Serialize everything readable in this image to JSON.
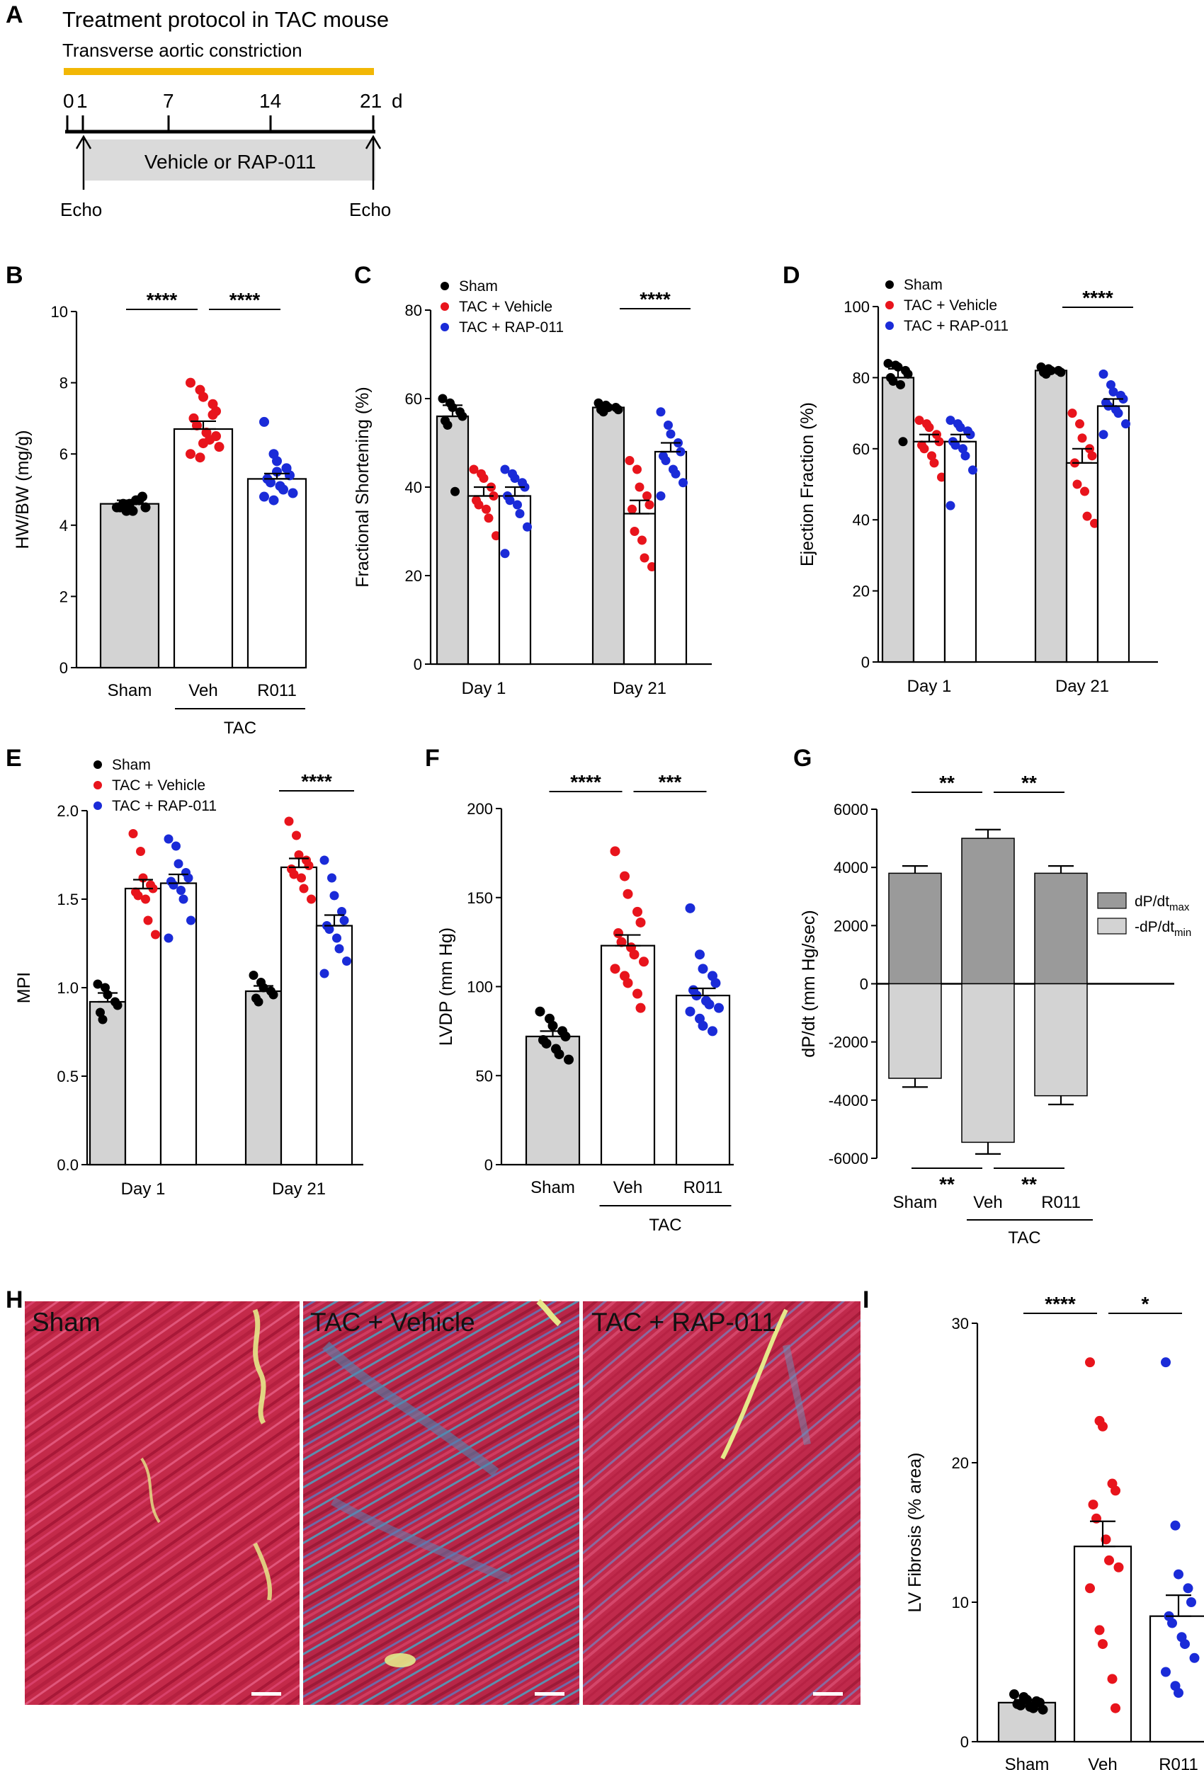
{
  "colors": {
    "sham": "#000000",
    "vehicle": "#e8141c",
    "rap": "#1a2bd8",
    "bar_gray": "#d3d3d3",
    "bar_dark": "#9a9a9a",
    "timeline": "#f2b705"
  },
  "legend": {
    "sham": "Sham",
    "vehicle": "TAC + Vehicle",
    "rap": "TAC + RAP-011"
  },
  "panelA": {
    "label": "A",
    "title": "Treatment protocol in TAC mouse",
    "subtitle": "Transverse aortic constriction",
    "ticks": [
      "0",
      "1",
      "7",
      "14",
      "21"
    ],
    "unit": "d",
    "box_label": "Vehicle or RAP-011",
    "echo_left": "Echo",
    "echo_right": "Echo"
  },
  "panelH": {
    "label": "H",
    "images": [
      "Sham",
      "TAC + Vehicle",
      "TAC + RAP-011"
    ]
  },
  "chart_data": [
    {
      "id": "B",
      "label": "B",
      "type": "bar",
      "ylabel": "HW/BW (mg/g)",
      "ylim": [
        0,
        10
      ],
      "yticks": [
        "0",
        "2",
        "4",
        "6",
        "8",
        "10"
      ],
      "categories": [
        "Sham",
        "Veh",
        "R011"
      ],
      "group_label": "TAC",
      "values": [
        4.6,
        6.7,
        5.3
      ],
      "errors": [
        0.1,
        0.22,
        0.15
      ],
      "points": [
        [
          4.5,
          4.4,
          4.6,
          4.7,
          4.8,
          4.5,
          4.6,
          4.4,
          4.7,
          4.5
        ],
        [
          8.0,
          7.8,
          7.6,
          7.4,
          7.2,
          7.0,
          6.8,
          6.6,
          6.4,
          6.2,
          6.0,
          5.9,
          6.3,
          7.1,
          6.5
        ],
        [
          6.9,
          6.0,
          5.8,
          5.6,
          5.4,
          5.3,
          5.2,
          5.1,
          5.0,
          4.9,
          4.8,
          4.7,
          5.5,
          5.6
        ]
      ],
      "significance": [
        "****",
        "****"
      ]
    },
    {
      "id": "C",
      "label": "C",
      "type": "bar",
      "ylabel": "Fractional Shortening (%)",
      "ylim": [
        0,
        80
      ],
      "yticks": [
        "0",
        "20",
        "40",
        "60",
        "80"
      ],
      "groups": [
        "Day 1",
        "Day 21"
      ],
      "series": [
        {
          "name": "Sham",
          "values": [
            56,
            58
          ],
          "errors": [
            2.5,
            0.4
          ],
          "points": [
            [
              60,
              59,
              58,
              57,
              56,
              55,
              54,
              39
            ],
            [
              59,
              58.5,
              58,
              58,
              57.5,
              57.5,
              57
            ]
          ]
        },
        {
          "name": "TAC + Vehicle",
          "values": [
            38,
            34
          ],
          "errors": [
            2,
            3
          ],
          "points": [
            [
              44,
              43,
              42,
              40,
              38,
              37,
              36,
              35,
              33,
              29
            ],
            [
              46,
              44,
              40,
              38,
              36,
              35,
              30,
              28,
              24,
              22
            ]
          ]
        },
        {
          "name": "TAC + RAP-011",
          "values": [
            38,
            48
          ],
          "errors": [
            2,
            2
          ],
          "points": [
            [
              44,
              43,
              42,
              41,
              40,
              38,
              37,
              36,
              34,
              31,
              25
            ],
            [
              57,
              54,
              52,
              50,
              48,
              47,
              46,
              44,
              43,
              41,
              38
            ]
          ]
        }
      ],
      "significance": [
        "****"
      ]
    },
    {
      "id": "D",
      "label": "D",
      "type": "bar",
      "ylabel": "Ejection Fraction (%)",
      "ylim": [
        0,
        100
      ],
      "yticks": [
        "0",
        "20",
        "40",
        "60",
        "80",
        "100"
      ],
      "groups": [
        "Day 1",
        "Day 21"
      ],
      "series": [
        {
          "name": "Sham",
          "values": [
            80,
            82
          ],
          "errors": [
            2.5,
            0.5
          ],
          "points": [
            [
              84,
              83.5,
              83,
              82,
              81,
              80,
              79,
              78,
              62
            ],
            [
              83,
              82.5,
              82,
              82,
              81.5,
              81.5,
              81
            ]
          ]
        },
        {
          "name": "TAC + Vehicle",
          "values": [
            62,
            56
          ],
          "errors": [
            2,
            4
          ],
          "points": [
            [
              68,
              67,
              66,
              64,
              62,
              61,
              60,
              58,
              56,
              52
            ],
            [
              70,
              67,
              63,
              60,
              58,
              56,
              50,
              48,
              41,
              39
            ]
          ]
        },
        {
          "name": "TAC + RAP-011",
          "values": [
            62,
            72
          ],
          "errors": [
            2,
            2
          ],
          "points": [
            [
              68,
              67,
              66,
              65,
              64,
              62,
              61,
              60,
              58,
              54,
              44
            ],
            [
              81,
              78,
              76,
              75,
              74,
              73,
              72,
              71,
              70,
              67,
              64
            ]
          ]
        }
      ],
      "significance": [
        "****"
      ]
    },
    {
      "id": "E",
      "label": "E",
      "type": "bar",
      "ylabel": "MPI",
      "ylim": [
        0,
        2.0
      ],
      "yticks": [
        "0.0",
        "0.5",
        "1.0",
        "1.5",
        "2.0"
      ],
      "groups": [
        "Day 1",
        "Day 21"
      ],
      "series": [
        {
          "name": "Sham",
          "values": [
            0.92,
            0.98
          ],
          "errors": [
            0.05,
            0.03
          ],
          "points": [
            [
              1.02,
              1.0,
              0.96,
              0.92,
              0.9,
              0.86,
              0.82
            ],
            [
              1.07,
              1.03,
              1.0,
              0.98,
              0.96,
              0.94,
              0.92
            ]
          ]
        },
        {
          "name": "TAC + Vehicle",
          "values": [
            1.56,
            1.68
          ],
          "errors": [
            0.05,
            0.05
          ],
          "points": [
            [
              1.87,
              1.77,
              1.62,
              1.58,
              1.56,
              1.54,
              1.52,
              1.5,
              1.38,
              1.3
            ],
            [
              1.94,
              1.86,
              1.75,
              1.72,
              1.69,
              1.67,
              1.64,
              1.62,
              1.56,
              1.5
            ]
          ]
        },
        {
          "name": "TAC + RAP-011",
          "values": [
            1.59,
            1.35
          ],
          "errors": [
            0.05,
            0.06
          ],
          "points": [
            [
              1.84,
              1.8,
              1.7,
              1.65,
              1.62,
              1.6,
              1.58,
              1.55,
              1.5,
              1.38,
              1.28
            ],
            [
              1.72,
              1.62,
              1.52,
              1.43,
              1.38,
              1.35,
              1.33,
              1.28,
              1.22,
              1.15,
              1.08
            ]
          ]
        }
      ],
      "significance": [
        "****"
      ]
    },
    {
      "id": "F",
      "label": "F",
      "type": "bar",
      "ylabel": "LVDP (mm Hg)",
      "ylim": [
        0,
        200
      ],
      "yticks": [
        "0",
        "50",
        "100",
        "150",
        "200"
      ],
      "categories": [
        "Sham",
        "Veh",
        "R011"
      ],
      "group_label": "TAC",
      "values": [
        72,
        123,
        95
      ],
      "errors": [
        3,
        6,
        4
      ],
      "points": [
        [
          86,
          82,
          78,
          75,
          72,
          70,
          68,
          65,
          62,
          59
        ],
        [
          176,
          162,
          152,
          142,
          136,
          130,
          125,
          122,
          118,
          114,
          110,
          106,
          102,
          96,
          88
        ],
        [
          144,
          118,
          110,
          106,
          102,
          98,
          95,
          92,
          90,
          88,
          86,
          82,
          78,
          75
        ]
      ],
      "significance": [
        "****",
        "***"
      ]
    },
    {
      "id": "G",
      "label": "G",
      "type": "bar",
      "ylabel": "dP/dt (mm Hg/sec)",
      "ylim": [
        -6000,
        6000
      ],
      "yticks": [
        "-6000",
        "-4000",
        "-2000",
        "0",
        "2000",
        "4000",
        "6000"
      ],
      "categories": [
        "Sham",
        "Veh",
        "R011"
      ],
      "group_label": "TAC",
      "series": [
        {
          "name": "dP/dt",
          "sub": "max",
          "values": [
            3800,
            5000,
            3800
          ],
          "errors": [
            250,
            300,
            250
          ]
        },
        {
          "name": "-dP/dt",
          "sub": "min",
          "values": [
            -3250,
            -5450,
            -3850
          ],
          "errors": [
            300,
            400,
            300
          ]
        }
      ],
      "significance_top": [
        "**",
        "**"
      ],
      "significance_bottom": [
        "**",
        "**"
      ]
    },
    {
      "id": "I",
      "label": "I",
      "type": "bar",
      "ylabel": "LV Fibrosis (% area)",
      "ylim": [
        0,
        30
      ],
      "yticks": [
        "0",
        "10",
        "20",
        "30"
      ],
      "categories": [
        "Sham",
        "Veh",
        "R011"
      ],
      "group_label": "TAC",
      "values": [
        2.8,
        14.0,
        9.0
      ],
      "errors": [
        0.2,
        1.8,
        1.5
      ],
      "points": [
        [
          3.4,
          3.2,
          3.0,
          2.9,
          2.8,
          2.7,
          2.6,
          2.5,
          2.4,
          2.3
        ],
        [
          27.2,
          23.0,
          22.6,
          18.5,
          18.0,
          17.0,
          16.0,
          14.5,
          13.0,
          12.5,
          11.0,
          8.0,
          7.0,
          4.5,
          2.4
        ],
        [
          27.2,
          15.5,
          12.0,
          11.0,
          10.0,
          9.0,
          8.5,
          7.5,
          7.0,
          6.0,
          5.0,
          4.0,
          3.5
        ]
      ],
      "significance": [
        "****",
        "*"
      ]
    }
  ]
}
